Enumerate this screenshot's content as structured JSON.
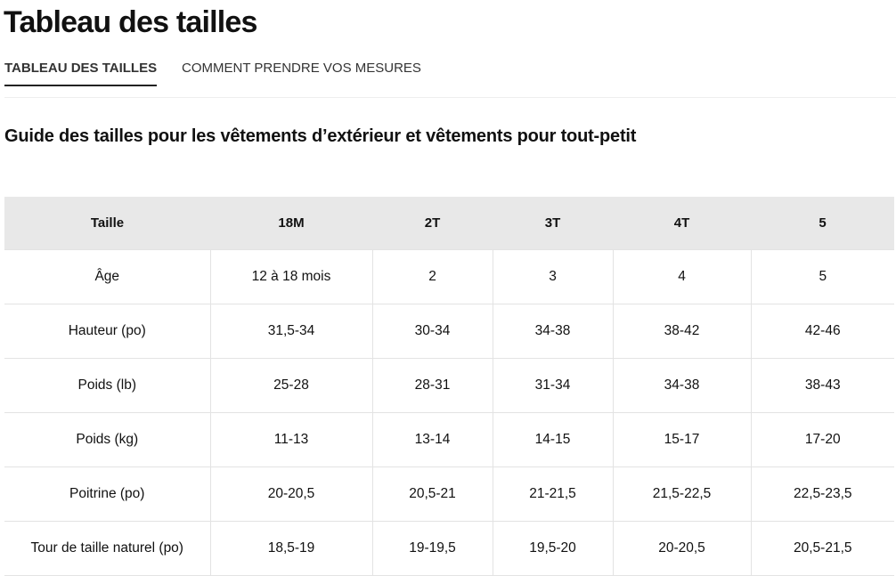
{
  "header": {
    "title": "Tableau des tailles"
  },
  "tabs": [
    "TABLEAU DES TAILLES",
    "COMMENT PRENDRE VOS MESURES"
  ],
  "section": {
    "title": "Guide des tailles pour les vêtements d’extérieur et vêtements pour tout-petit"
  },
  "table": {
    "header": [
      "Taille",
      "18M",
      "2T",
      "3T",
      "4T",
      "5"
    ],
    "rows": [
      [
        "Âge",
        "12 à 18 mois",
        "2",
        "3",
        "4",
        "5"
      ],
      [
        "Hauteur (po)",
        "31,5-34",
        "30-34",
        "34-38",
        "38-42",
        "42-46"
      ],
      [
        "Poids (lb)",
        "25-28",
        "28-31",
        "31-34",
        "34-38",
        "38-43"
      ],
      [
        "Poids (kg)",
        "11-13",
        "13-14",
        "14-15",
        "15-17",
        "17-20"
      ],
      [
        "Poitrine (po)",
        "20-20,5",
        "20,5-21",
        "21-21,5",
        "21,5-22,5",
        "22,5-23,5"
      ],
      [
        "Tour de taille naturel (po)",
        "18,5-19",
        "19-19,5",
        "19,5-20",
        "20-20,5",
        "20,5-21,5"
      ]
    ]
  }
}
